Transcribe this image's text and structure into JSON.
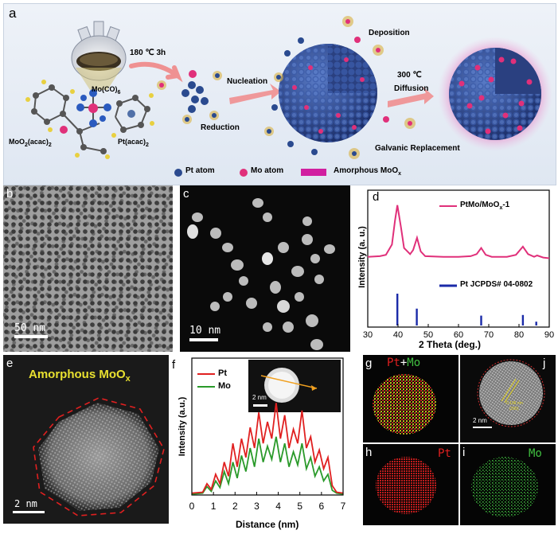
{
  "panel_a": {
    "label": "a",
    "step1": "180 ℃ 3h",
    "reagent_mo": "Mo(CO)",
    "reagent_mo_sub": "6",
    "reagent_moo2_pre": "MoO",
    "reagent_moo2_sub": "2",
    "reagent_moo2_post": "(acac)",
    "reagent_moo2_sub2": "2",
    "reagent_pt": "Pt(acac)",
    "reagent_pt_sub": "2",
    "reduction": "Reduction",
    "nucleation": "Nucleation",
    "deposition": "Deposition",
    "step2_temp": "300 ℃",
    "step2_label": "Diffusion",
    "galvanic": "Galvanic Replacement",
    "legend_pt": "Pt atom",
    "legend_mo": "Mo atom",
    "legend_moox_pre": "Amorphous MoO",
    "legend_moox_sub": "x",
    "colors": {
      "pt": "#2b4a8f",
      "mo": "#e0307a",
      "moox": "#d11fa0",
      "bg": "#e3eaf4"
    }
  },
  "panel_b": {
    "label": "b",
    "scale": "50 nm"
  },
  "panel_c": {
    "label": "c",
    "scale": "10 nm"
  },
  "panel_d": {
    "label": "d",
    "legend_sample_pre": "PtMo/MoO",
    "legend_sample_sub": "x",
    "legend_sample_post": "-1",
    "legend_ref": "Pt JCPDS# 04-0802",
    "xticks": [
      "30",
      "40",
      "50",
      "60",
      "70",
      "80",
      "90"
    ]
  },
  "panel_e": {
    "label": "e",
    "title_pre": "Amorphous MoO",
    "title_sub": "x",
    "scale": "2 nm"
  },
  "panel_f": {
    "label": "f",
    "legend_pt": "Pt",
    "legend_mo": "Mo",
    "inset_scale": "2 nm",
    "xticks": [
      "0",
      "1",
      "2",
      "3",
      "4",
      "5",
      "6",
      "7"
    ]
  },
  "panel_g": {
    "label": "g",
    "title_pt": "Pt",
    "title_plus": "+",
    "title_mo": "Mo"
  },
  "panel_h": {
    "label": "h",
    "title": "Pt"
  },
  "panel_i": {
    "label": "i",
    "title": "Mo"
  },
  "panel_j": {
    "label": "j",
    "scale": "2 nm",
    "annot1": "0.196 nm",
    "annot2": "(200)"
  },
  "chart_data": [
    {
      "type": "line",
      "panel": "d",
      "xlabel": "2 Theta (deg.)",
      "ylabel": "Intensity (a. u.)",
      "xlim": [
        30,
        90
      ],
      "x_ticks": [
        30,
        40,
        50,
        60,
        70,
        80,
        90
      ],
      "series": [
        {
          "name": "PtMo/MoOx-1",
          "color": "#e0307a",
          "x": [
            30,
            34,
            36,
            38,
            39,
            39.8,
            41,
            42,
            44,
            45,
            46.3,
            47.5,
            49,
            55,
            60,
            64,
            66,
            67.5,
            69,
            71,
            76,
            79,
            81.3,
            83,
            85,
            86,
            88,
            90
          ],
          "y": [
            0.12,
            0.13,
            0.15,
            0.3,
            0.65,
            0.88,
            0.55,
            0.25,
            0.16,
            0.22,
            0.4,
            0.2,
            0.13,
            0.12,
            0.12,
            0.13,
            0.16,
            0.25,
            0.15,
            0.12,
            0.12,
            0.15,
            0.27,
            0.16,
            0.12,
            0.14,
            0.11,
            0.1
          ]
        }
      ],
      "reference": {
        "name": "Pt JCPDS# 04-0802",
        "color": "#1a2aa8",
        "positions": [
          39.8,
          46.2,
          67.5,
          81.3,
          85.7
        ],
        "intensities": [
          1.0,
          0.53,
          0.31,
          0.33,
          0.12
        ]
      }
    },
    {
      "type": "line",
      "panel": "f",
      "xlabel": "Distance (nm)",
      "ylabel": "Intensity (a.u.)",
      "xlim": [
        0,
        7
      ],
      "x_ticks": [
        0,
        1,
        2,
        3,
        4,
        5,
        6,
        7
      ],
      "series": [
        {
          "name": "Pt",
          "color": "#e02020",
          "x": [
            0.0,
            0.5,
            0.7,
            0.9,
            1.1,
            1.3,
            1.5,
            1.7,
            1.9,
            2.1,
            2.3,
            2.5,
            2.7,
            2.9,
            3.1,
            3.3,
            3.5,
            3.7,
            3.9,
            4.1,
            4.3,
            4.5,
            4.7,
            4.9,
            5.1,
            5.3,
            5.5,
            5.7,
            5.9,
            6.1,
            6.3,
            6.5,
            6.7,
            7.0
          ],
          "y": [
            0.02,
            0.03,
            0.12,
            0.06,
            0.22,
            0.12,
            0.35,
            0.2,
            0.55,
            0.3,
            0.6,
            0.4,
            0.72,
            0.5,
            0.88,
            0.55,
            0.78,
            0.6,
            0.98,
            0.6,
            0.85,
            0.5,
            0.7,
            0.55,
            0.9,
            0.5,
            0.62,
            0.35,
            0.48,
            0.28,
            0.4,
            0.1,
            0.03,
            0.02
          ]
        },
        {
          "name": "Mo",
          "color": "#2a9a2a",
          "x": [
            0.0,
            0.5,
            0.7,
            0.9,
            1.1,
            1.3,
            1.5,
            1.7,
            1.9,
            2.1,
            2.3,
            2.5,
            2.7,
            2.9,
            3.1,
            3.3,
            3.5,
            3.7,
            3.9,
            4.1,
            4.3,
            4.5,
            4.7,
            4.9,
            5.1,
            5.3,
            5.5,
            5.7,
            5.9,
            6.1,
            6.3,
            6.5,
            6.7,
            7.0
          ],
          "y": [
            0.01,
            0.02,
            0.09,
            0.04,
            0.15,
            0.08,
            0.25,
            0.12,
            0.35,
            0.18,
            0.42,
            0.25,
            0.5,
            0.3,
            0.6,
            0.35,
            0.52,
            0.38,
            0.62,
            0.35,
            0.55,
            0.3,
            0.46,
            0.32,
            0.55,
            0.28,
            0.4,
            0.2,
            0.3,
            0.15,
            0.22,
            0.05,
            0.02,
            0.01
          ]
        }
      ]
    }
  ]
}
